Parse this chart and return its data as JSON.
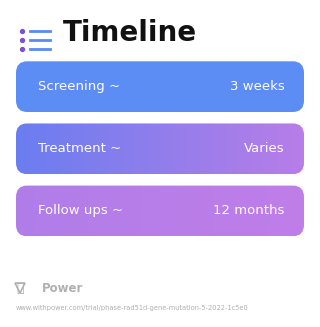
{
  "title": "Timeline",
  "title_fontsize": 20,
  "title_fontweight": "bold",
  "title_color": "#111111",
  "icon_color_dot": "#7b52d4",
  "icon_color_line": "#5b8af5",
  "background_color": "#ffffff",
  "rows": [
    {
      "label": "Screening ~",
      "value": "3 weeks",
      "color_left": "#5b8df5",
      "color_right": "#5b8df5"
    },
    {
      "label": "Treatment ~",
      "value": "Varies",
      "color_left": "#6a7ef0",
      "color_right": "#b87de8"
    },
    {
      "label": "Follow ups ~",
      "value": "12 months",
      "color_left": "#b07de8",
      "color_right": "#c07de8"
    }
  ],
  "label_fontsize": 9.5,
  "value_fontsize": 9.5,
  "footer_text": "Power",
  "footer_url": "www.withpower.com/trial/phase-rad51d-gene-mutation-5-2022-1c5e0",
  "footer_color": "#b0b0b0",
  "footer_fontsize": 4.8,
  "power_fontsize": 8.5
}
